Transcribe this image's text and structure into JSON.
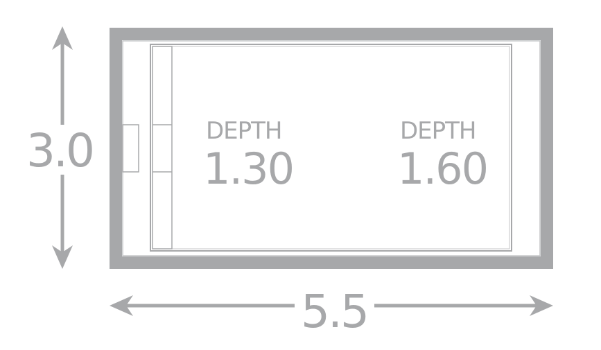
{
  "dimensions": {
    "height": "3.0",
    "width": "5.5"
  },
  "zones": [
    {
      "label": "DEPTH",
      "value": "1.30"
    },
    {
      "label": "DEPTH",
      "value": "1.60"
    }
  ],
  "colors": {
    "line": "#a7a8aa",
    "background": "#ffffff"
  }
}
